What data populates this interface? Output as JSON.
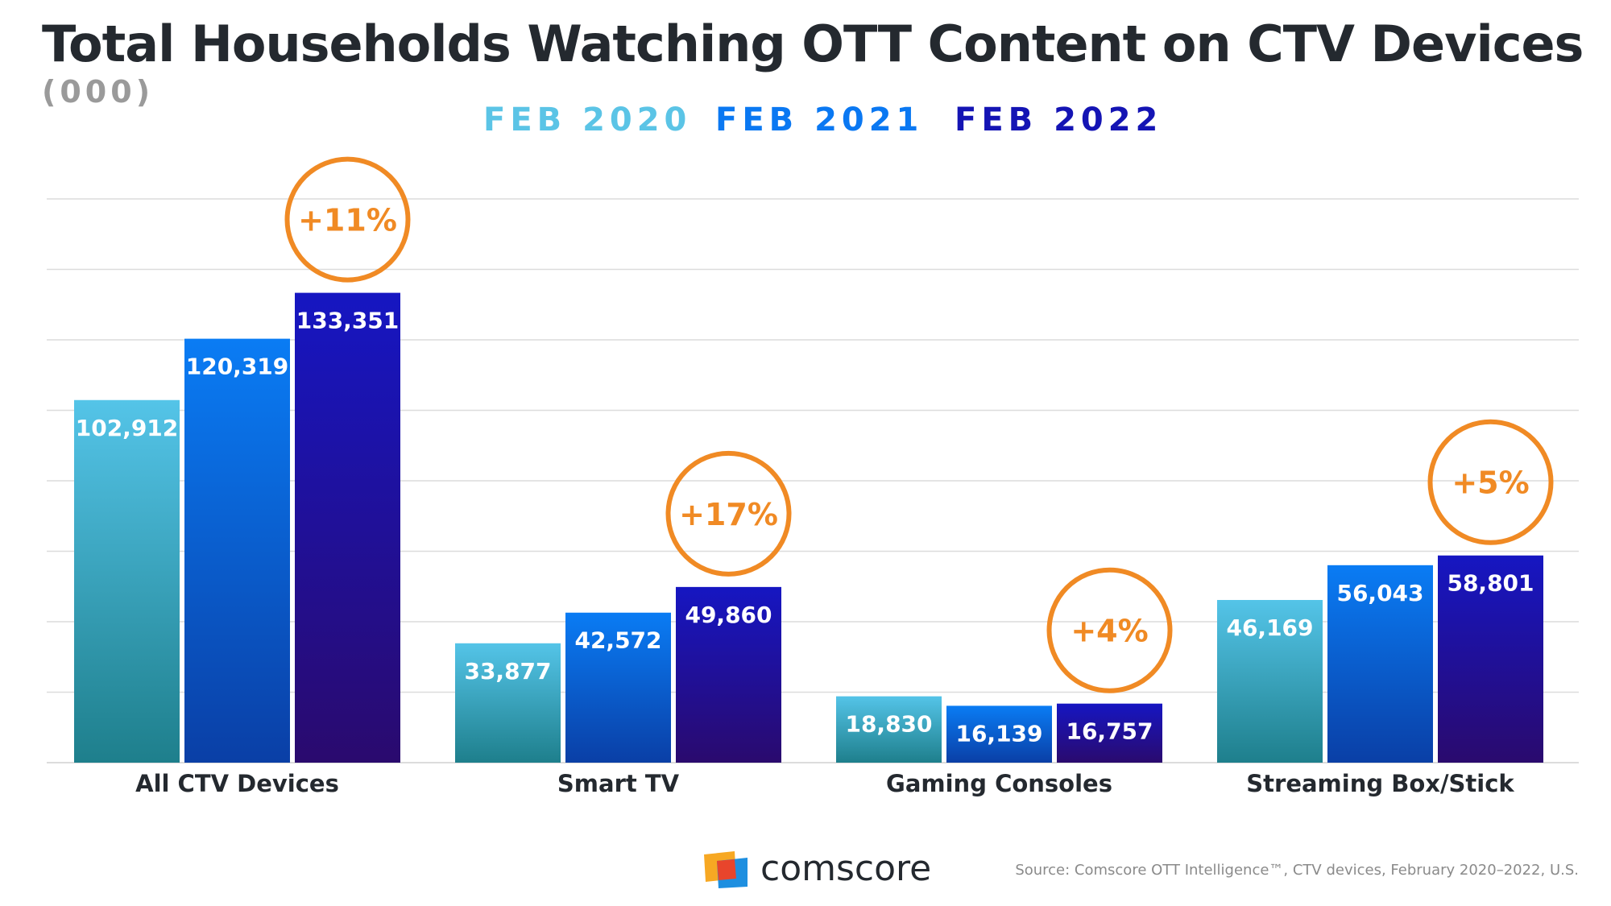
{
  "chart_data": {
    "type": "bar",
    "title": "Total Households Watching OTT Content on CTV Devices",
    "subtitle": "(000)",
    "categories": [
      "All CTV Devices",
      "Smart TV",
      "Gaming Consoles",
      "Streaming Box/Stick"
    ],
    "series": [
      {
        "name": "FEB 2020",
        "color": "#5bc4e6",
        "values": [
          102912,
          33877,
          18830,
          46169
        ]
      },
      {
        "name": "FEB 2021",
        "color": "#0a78f2",
        "values": [
          120319,
          42572,
          16139,
          56043
        ]
      },
      {
        "name": "FEB 2022",
        "color": "#1414b4",
        "values": [
          133351,
          49860,
          16757,
          58801
        ]
      }
    ],
    "value_labels": [
      [
        "102,912",
        "33,877",
        "18,830",
        "46,169"
      ],
      [
        "120,319",
        "42,572",
        "16,139",
        "56,043"
      ],
      [
        "133,351",
        "49,860",
        "16,757",
        "58,801"
      ]
    ],
    "change_labels": [
      "+11%",
      "+17%",
      "+4%",
      "+5%"
    ],
    "ylim": [
      0,
      160000
    ],
    "ytick_step": 20000,
    "grid": true,
    "legend_position": "top-center",
    "xlabel": "",
    "ylabel": ""
  },
  "colors": {
    "accent": "#f08a24",
    "text": "#24292f",
    "grid": "#dcdcdc"
  },
  "brand": {
    "name": "comscore"
  },
  "source": "Source: Comscore OTT Intelligence™, CTV devices, February 2020–2022, U.S."
}
